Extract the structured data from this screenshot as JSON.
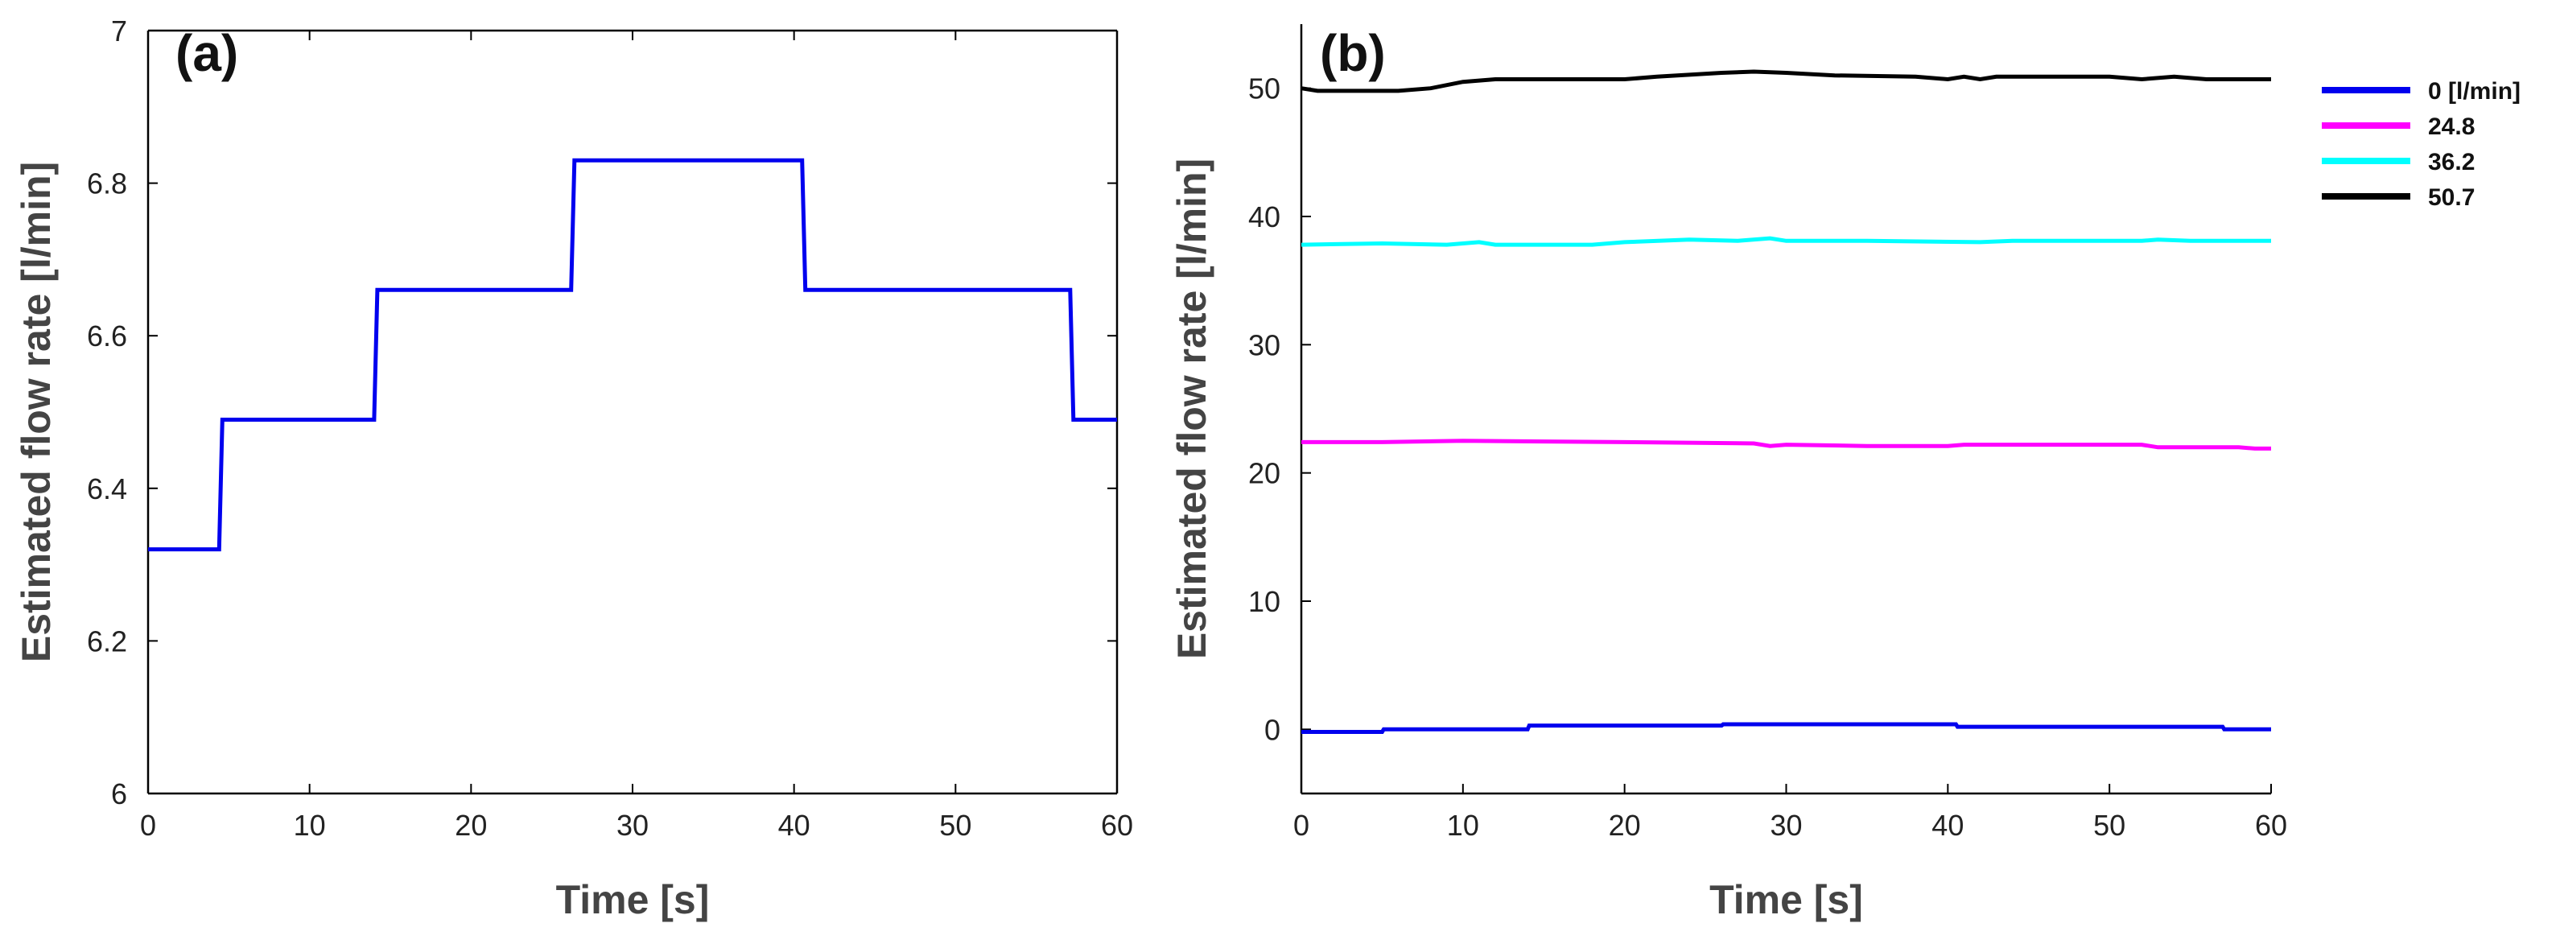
{
  "chart_data": [
    {
      "panel": "(a)",
      "type": "line",
      "xlabel": "Time [s]",
      "ylabel": "Estimated flow rate [l/min]",
      "xlim": [
        0,
        60
      ],
      "ylim": [
        6,
        7
      ],
      "xticks": [
        "0",
        "10",
        "20",
        "30",
        "40",
        "50",
        "60"
      ],
      "yticks": [
        "6",
        "6.2",
        "6.4",
        "6.6",
        "6.8",
        "7"
      ],
      "series": [
        {
          "name": "Estimated flow rate",
          "color": "#0000ee",
          "points": [
            [
              0,
              6.32
            ],
            [
              4.4,
              6.32
            ],
            [
              4.6,
              6.49
            ],
            [
              14,
              6.49
            ],
            [
              14.2,
              6.66
            ],
            [
              26.2,
              6.66
            ],
            [
              26.4,
              6.83
            ],
            [
              40.5,
              6.83
            ],
            [
              40.7,
              6.66
            ],
            [
              57.1,
              6.66
            ],
            [
              57.3,
              6.49
            ],
            [
              60,
              6.49
            ]
          ]
        }
      ]
    },
    {
      "panel": "(b)",
      "type": "line",
      "xlabel": "Time [s]",
      "ylabel": "Estimated flow rate [l/min]",
      "xlim": [
        0,
        60
      ],
      "ylim": [
        -5,
        55
      ],
      "xticks": [
        "0",
        "10",
        "20",
        "30",
        "40",
        "50",
        "60"
      ],
      "yticks": [
        "0",
        "10",
        "20",
        "30",
        "40",
        "50"
      ],
      "legend_position": "outside-top-right",
      "series": [
        {
          "name": "0 [l/min]",
          "color": "#0000ee",
          "points": [
            [
              0,
              -0.2
            ],
            [
              5,
              -0.2
            ],
            [
              5.1,
              0.0
            ],
            [
              14,
              0.0
            ],
            [
              14.1,
              0.3
            ],
            [
              26,
              0.3
            ],
            [
              26.1,
              0.4
            ],
            [
              40.5,
              0.4
            ],
            [
              40.6,
              0.2
            ],
            [
              57,
              0.2
            ],
            [
              57.1,
              0.0
            ],
            [
              60,
              0.0
            ]
          ]
        },
        {
          "name": "24.8",
          "color": "#ff00ff",
          "points": [
            [
              0,
              22.4
            ],
            [
              5,
              22.4
            ],
            [
              10,
              22.5
            ],
            [
              20,
              22.4
            ],
            [
              28,
              22.3
            ],
            [
              29,
              22.1
            ],
            [
              30,
              22.2
            ],
            [
              35,
              22.1
            ],
            [
              40,
              22.1
            ],
            [
              41,
              22.2
            ],
            [
              52,
              22.2
            ],
            [
              53,
              22.0
            ],
            [
              58,
              22.0
            ],
            [
              59,
              21.9
            ],
            [
              60,
              21.9
            ]
          ]
        },
        {
          "name": "36.2",
          "color": "#00ffff",
          "points": [
            [
              0,
              37.8
            ],
            [
              5,
              37.9
            ],
            [
              9,
              37.8
            ],
            [
              11,
              38.0
            ],
            [
              12,
              37.8
            ],
            [
              18,
              37.8
            ],
            [
              20,
              38.0
            ],
            [
              24,
              38.2
            ],
            [
              27,
              38.1
            ],
            [
              29,
              38.3
            ],
            [
              30,
              38.1
            ],
            [
              35,
              38.1
            ],
            [
              42,
              38.0
            ],
            [
              44,
              38.1
            ],
            [
              52,
              38.1
            ],
            [
              53,
              38.2
            ],
            [
              55,
              38.1
            ],
            [
              60,
              38.1
            ]
          ]
        },
        {
          "name": "50.7",
          "color": "#000000",
          "points": [
            [
              0,
              50.0
            ],
            [
              1,
              49.8
            ],
            [
              6,
              49.8
            ],
            [
              8,
              50.0
            ],
            [
              10,
              50.5
            ],
            [
              12,
              50.7
            ],
            [
              20,
              50.7
            ],
            [
              22,
              50.9
            ],
            [
              26,
              51.2
            ],
            [
              28,
              51.3
            ],
            [
              30,
              51.2
            ],
            [
              33,
              51.0
            ],
            [
              38,
              50.9
            ],
            [
              40,
              50.7
            ],
            [
              41,
              50.9
            ],
            [
              42,
              50.7
            ],
            [
              43,
              50.9
            ],
            [
              50,
              50.9
            ],
            [
              52,
              50.7
            ],
            [
              54,
              50.9
            ],
            [
              56,
              50.7
            ],
            [
              60,
              50.7
            ]
          ]
        }
      ]
    }
  ]
}
